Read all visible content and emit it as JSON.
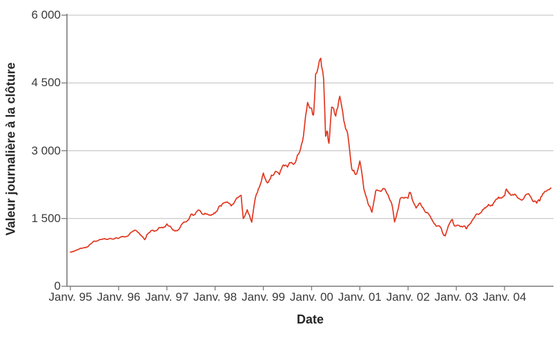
{
  "chart_data": {
    "type": "line",
    "title": "",
    "xlabel": "Date",
    "ylabel": "Valeur journalière à la clôture",
    "legend": "none",
    "grid": "horizontal",
    "ylim": [
      0,
      6000
    ],
    "xlim_years": [
      1995,
      2005
    ],
    "y_ticks": [
      {
        "value": 0,
        "label": "0"
      },
      {
        "value": 1500,
        "label": "1 500"
      },
      {
        "value": 3000,
        "label": "3 000"
      },
      {
        "value": 4500,
        "label": "4 500"
      },
      {
        "value": 6000,
        "label": "6 000"
      }
    ],
    "x_ticks": [
      {
        "year": 1995,
        "label": "Janv. 95"
      },
      {
        "year": 1996,
        "label": "Janv. 96"
      },
      {
        "year": 1997,
        "label": "Janv. 97"
      },
      {
        "year": 1998,
        "label": "Janv. 98"
      },
      {
        "year": 1999,
        "label": "Janv. 99"
      },
      {
        "year": 2000,
        "label": "Janv. 00"
      },
      {
        "year": 2001,
        "label": "Janv. 01"
      },
      {
        "year": 2002,
        "label": "Janv. 02"
      },
      {
        "year": 2003,
        "label": "Janv. 03"
      },
      {
        "year": 2004,
        "label": "Janv. 04"
      }
    ],
    "colors": {
      "line": "#e1361f",
      "grid": "#c9c9c9",
      "axis": "#7a7a7a",
      "text": "#3a3a3a"
    },
    "series": [
      {
        "name": "Valeur journalière à la clôture",
        "x": [
          1995.0,
          1995.083,
          1995.167,
          1995.25,
          1995.333,
          1995.417,
          1995.5,
          1995.583,
          1995.667,
          1995.75,
          1995.833,
          1995.917,
          1996.0,
          1996.083,
          1996.167,
          1996.25,
          1996.333,
          1996.417,
          1996.54,
          1996.583,
          1996.667,
          1996.75,
          1996.833,
          1996.917,
          1997.0,
          1997.083,
          1997.167,
          1997.25,
          1997.333,
          1997.417,
          1997.5,
          1997.583,
          1997.667,
          1997.75,
          1997.833,
          1997.917,
          1998.0,
          1998.083,
          1998.167,
          1998.25,
          1998.333,
          1998.417,
          1998.54,
          1998.583,
          1998.667,
          1998.76,
          1998.833,
          1998.917,
          1999.0,
          1999.083,
          1999.167,
          1999.25,
          1999.333,
          1999.417,
          1999.5,
          1999.583,
          1999.667,
          1999.75,
          1999.833,
          1999.917,
          2000.0,
          2000.04,
          2000.083,
          2000.19,
          2000.25,
          2000.29,
          2000.333,
          2000.36,
          2000.417,
          2000.5,
          2000.583,
          2000.667,
          2000.75,
          2000.833,
          2000.917,
          2001.0,
          2001.083,
          2001.167,
          2001.25,
          2001.33,
          2001.417,
          2001.5,
          2001.583,
          2001.667,
          2001.72,
          2001.79,
          2001.833,
          2001.917,
          2002.0,
          2002.04,
          2002.083,
          2002.167,
          2002.25,
          2002.333,
          2002.417,
          2002.5,
          2002.583,
          2002.667,
          2002.72,
          2002.77,
          2002.833,
          2002.917,
          2002.96,
          2003.083,
          2003.167,
          2003.21,
          2003.25,
          2003.333,
          2003.417,
          2003.5,
          2003.583,
          2003.667,
          2003.75,
          2003.833,
          2003.917,
          2004.0,
          2004.04,
          2004.083,
          2004.167,
          2004.25,
          2004.333,
          2004.417,
          2004.5,
          2004.583,
          2004.667,
          2004.72,
          2004.75,
          2004.833,
          2004.96
        ],
        "values": [
          755,
          780,
          817,
          844,
          865,
          933,
          1001,
          1020,
          1044,
          1036,
          1059,
          1052,
          1060,
          1100,
          1101,
          1191,
          1243,
          1185,
          1032,
          1142,
          1227,
          1221,
          1293,
          1291,
          1380,
          1309,
          1222,
          1261,
          1400,
          1442,
          1594,
          1587,
          1686,
          1594,
          1601,
          1570,
          1619,
          1771,
          1836,
          1868,
          1779,
          1895,
          2014,
          1499,
          1694,
          1419,
          1950,
          2193,
          2506,
          2288,
          2461,
          2543,
          2471,
          2686,
          2638,
          2739,
          2746,
          2966,
          3336,
          4069,
          3940,
          3790,
          4697,
          5048,
          4573,
          3321,
          3401,
          3165,
          3966,
          3767,
          4206,
          3673,
          3370,
          2598,
          2471,
          2773,
          2152,
          1840,
          1638,
          2116,
          2110,
          2161,
          2027,
          1805,
          1423,
          1690,
          1930,
          1950,
          1950,
          2066,
          1934,
          1731,
          1845,
          1688,
          1616,
          1463,
          1328,
          1315,
          1172,
          1114,
          1330,
          1479,
          1336,
          1321,
          1338,
          1271,
          1341,
          1464,
          1596,
          1623,
          1735,
          1810,
          1787,
          1932,
          1960,
          2003,
          2150,
          2066,
          2030,
          1994,
          1920,
          1987,
          2048,
          1887,
          1838,
          1897,
          1975,
          2097,
          2175
        ]
      }
    ]
  }
}
